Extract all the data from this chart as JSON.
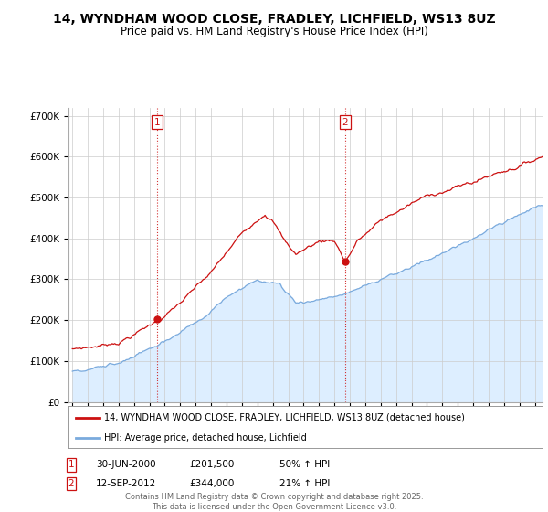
{
  "title": "14, WYNDHAM WOOD CLOSE, FRADLEY, LICHFIELD, WS13 8UZ",
  "subtitle": "Price paid vs. HM Land Registry's House Price Index (HPI)",
  "ylim": [
    0,
    720000
  ],
  "yticks": [
    0,
    100000,
    200000,
    300000,
    400000,
    500000,
    600000,
    700000
  ],
  "ytick_labels": [
    "£0",
    "£100K",
    "£200K",
    "£300K",
    "£400K",
    "£500K",
    "£600K",
    "£700K"
  ],
  "xlim_start": 1994.75,
  "xlim_end": 2025.5,
  "sale1_x": 2000.5,
  "sale1_y": 201500,
  "sale1_label": "1",
  "sale1_date": "30-JUN-2000",
  "sale1_price": "£201,500",
  "sale1_hpi": "50% ↑ HPI",
  "sale2_x": 2012.7,
  "sale2_y": 344000,
  "sale2_label": "2",
  "sale2_date": "12-SEP-2012",
  "sale2_price": "£344,000",
  "sale2_hpi": "21% ↑ HPI",
  "line1_color": "#cc1111",
  "line2_color": "#7aaadd",
  "fill_color": "#ddeeff",
  "vline_color": "#cc1111",
  "background_color": "#ffffff",
  "grid_color": "#cccccc",
  "legend1_label": "14, WYNDHAM WOOD CLOSE, FRADLEY, LICHFIELD, WS13 8UZ (detached house)",
  "legend2_label": "HPI: Average price, detached house, Lichfield",
  "footer": "Contains HM Land Registry data © Crown copyright and database right 2025.\nThis data is licensed under the Open Government Licence v3.0.",
  "title_fontsize": 10,
  "subtitle_fontsize": 8.5
}
